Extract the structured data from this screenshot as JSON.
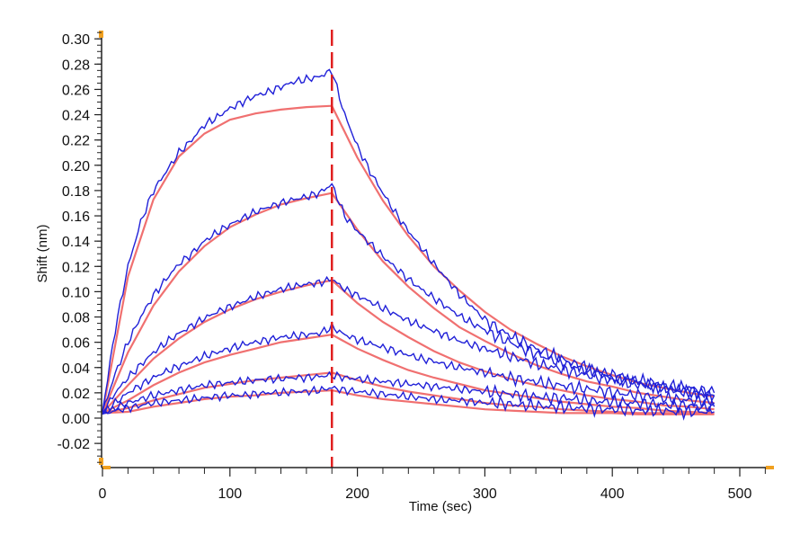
{
  "chart_data": {
    "type": "line",
    "title": "",
    "xlabel": "Time (sec)",
    "ylabel": "Shift (nm)",
    "xlim": [
      0,
      527
    ],
    "ylim": [
      -0.039,
      0.306
    ],
    "x_ticks": [
      0,
      100,
      200,
      300,
      400,
      500
    ],
    "x_tick_labels": [
      "0",
      "100",
      "200",
      "300",
      "400",
      "500"
    ],
    "y_ticks": [
      -0.02,
      0.0,
      0.02,
      0.04,
      0.06,
      0.08,
      0.1,
      0.12,
      0.14,
      0.16,
      0.18,
      0.2,
      0.22,
      0.24,
      0.26,
      0.28,
      0.3
    ],
    "y_tick_labels": [
      "-0.02",
      "0.00",
      "0.02",
      "0.04",
      "0.06",
      "0.08",
      "0.10",
      "0.12",
      "0.14",
      "0.16",
      "0.18",
      "0.20",
      "0.22",
      "0.24",
      "0.26",
      "0.28",
      "0.30"
    ],
    "grid": false,
    "vertical_marker": {
      "x": 180,
      "style": "dashed",
      "color": "#e02020"
    },
    "colors": {
      "measured": "#2020d8",
      "fit": "#f07070"
    },
    "measured_x": [
      0,
      10,
      20,
      30,
      40,
      50,
      60,
      70,
      80,
      90,
      100,
      110,
      120,
      130,
      140,
      150,
      160,
      170,
      180,
      190,
      200,
      210,
      220,
      230,
      240,
      250,
      260,
      270,
      280,
      290,
      300,
      310,
      320,
      330,
      340,
      350,
      360,
      370,
      380,
      390,
      400,
      410,
      420,
      430,
      440,
      450,
      460,
      470,
      480
    ],
    "fit_x": [
      0,
      20,
      40,
      60,
      80,
      100,
      120,
      140,
      160,
      180,
      200,
      220,
      240,
      260,
      280,
      300,
      320,
      340,
      360,
      380,
      400,
      420,
      440,
      460,
      480
    ],
    "series": [
      {
        "name": "measured-1",
        "kind": "measured",
        "values": [
          0.005,
          0.07,
          0.12,
          0.155,
          0.18,
          0.195,
          0.21,
          0.22,
          0.232,
          0.238,
          0.245,
          0.25,
          0.255,
          0.258,
          0.262,
          0.266,
          0.268,
          0.27,
          0.275,
          0.24,
          0.215,
          0.195,
          0.178,
          0.162,
          0.148,
          0.135,
          0.122,
          0.11,
          0.098,
          0.088,
          0.078,
          0.071,
          0.065,
          0.06,
          0.055,
          0.051,
          0.047,
          0.043,
          0.04,
          0.037,
          0.034,
          0.032,
          0.03,
          0.028,
          0.026,
          0.025,
          0.024,
          0.022,
          0.02
        ]
      },
      {
        "name": "measured-2",
        "kind": "measured",
        "values": [
          0.005,
          0.035,
          0.06,
          0.08,
          0.097,
          0.11,
          0.122,
          0.13,
          0.14,
          0.147,
          0.153,
          0.158,
          0.163,
          0.167,
          0.17,
          0.173,
          0.175,
          0.178,
          0.185,
          0.16,
          0.148,
          0.138,
          0.128,
          0.119,
          0.11,
          0.102,
          0.095,
          0.088,
          0.081,
          0.075,
          0.07,
          0.064,
          0.06,
          0.055,
          0.051,
          0.047,
          0.044,
          0.041,
          0.038,
          0.035,
          0.032,
          0.03,
          0.028,
          0.026,
          0.024,
          0.022,
          0.021,
          0.019,
          0.018
        ]
      },
      {
        "name": "measured-3",
        "kind": "measured",
        "values": [
          0.004,
          0.02,
          0.032,
          0.042,
          0.052,
          0.06,
          0.067,
          0.073,
          0.079,
          0.084,
          0.088,
          0.092,
          0.096,
          0.099,
          0.102,
          0.104,
          0.106,
          0.107,
          0.11,
          0.102,
          0.097,
          0.092,
          0.087,
          0.082,
          0.077,
          0.073,
          0.069,
          0.065,
          0.061,
          0.058,
          0.055,
          0.052,
          0.049,
          0.046,
          0.043,
          0.041,
          0.039,
          0.036,
          0.034,
          0.032,
          0.03,
          0.028,
          0.027,
          0.025,
          0.024,
          0.022,
          0.021,
          0.02,
          0.018
        ]
      },
      {
        "name": "measured-4",
        "kind": "measured",
        "values": [
          0.004,
          0.012,
          0.02,
          0.026,
          0.032,
          0.037,
          0.041,
          0.045,
          0.049,
          0.052,
          0.055,
          0.058,
          0.06,
          0.062,
          0.064,
          0.065,
          0.066,
          0.067,
          0.072,
          0.066,
          0.062,
          0.059,
          0.056,
          0.053,
          0.05,
          0.047,
          0.045,
          0.042,
          0.04,
          0.038,
          0.036,
          0.034,
          0.032,
          0.03,
          0.029,
          0.027,
          0.026,
          0.024,
          0.023,
          0.022,
          0.02,
          0.019,
          0.018,
          0.017,
          0.016,
          0.015,
          0.014,
          0.013,
          0.012
        ]
      },
      {
        "name": "measured-5",
        "kind": "measured",
        "values": [
          0.003,
          0.008,
          0.012,
          0.015,
          0.018,
          0.02,
          0.022,
          0.024,
          0.026,
          0.027,
          0.028,
          0.029,
          0.03,
          0.031,
          0.031,
          0.032,
          0.032,
          0.033,
          0.034,
          0.032,
          0.031,
          0.03,
          0.029,
          0.028,
          0.027,
          0.026,
          0.025,
          0.024,
          0.023,
          0.022,
          0.021,
          0.02,
          0.019,
          0.018,
          0.017,
          0.016,
          0.016,
          0.015,
          0.014,
          0.013,
          0.013,
          0.012,
          0.012,
          0.011,
          0.011,
          0.01,
          0.01,
          0.009,
          0.009
        ]
      },
      {
        "name": "measured-6",
        "kind": "measured",
        "values": [
          0.003,
          0.006,
          0.008,
          0.01,
          0.012,
          0.013,
          0.014,
          0.015,
          0.016,
          0.017,
          0.018,
          0.018,
          0.019,
          0.02,
          0.02,
          0.021,
          0.021,
          0.022,
          0.024,
          0.022,
          0.021,
          0.02,
          0.019,
          0.018,
          0.017,
          0.016,
          0.015,
          0.014,
          0.014,
          0.013,
          0.012,
          0.012,
          0.011,
          0.01,
          0.01,
          0.009,
          0.009,
          0.008,
          0.008,
          0.007,
          0.007,
          0.007,
          0.006,
          0.006,
          0.006,
          0.005,
          0.005,
          0.005,
          0.005
        ]
      },
      {
        "name": "fit-1",
        "kind": "fit",
        "values": [
          0.004,
          0.112,
          0.173,
          0.207,
          0.225,
          0.236,
          0.241,
          0.244,
          0.246,
          0.247,
          0.206,
          0.172,
          0.144,
          0.12,
          0.101,
          0.084,
          0.07,
          0.059,
          0.049,
          0.041,
          0.034,
          0.028,
          0.024,
          0.02,
          0.017
        ]
      },
      {
        "name": "fit-2",
        "kind": "fit",
        "values": [
          0.004,
          0.052,
          0.089,
          0.116,
          0.136,
          0.151,
          0.161,
          0.169,
          0.174,
          0.178,
          0.149,
          0.124,
          0.104,
          0.087,
          0.072,
          0.061,
          0.051,
          0.042,
          0.035,
          0.029,
          0.025,
          0.02,
          0.017,
          0.014,
          0.012
        ]
      },
      {
        "name": "fit-3",
        "kind": "fit",
        "values": [
          0.004,
          0.026,
          0.047,
          0.063,
          0.076,
          0.086,
          0.094,
          0.1,
          0.105,
          0.109,
          0.091,
          0.076,
          0.064,
          0.053,
          0.044,
          0.037,
          0.031,
          0.026,
          0.022,
          0.018,
          0.015,
          0.013,
          0.01,
          0.009,
          0.007
        ]
      },
      {
        "name": "fit-4",
        "kind": "fit",
        "values": [
          0.004,
          0.014,
          0.026,
          0.036,
          0.044,
          0.05,
          0.055,
          0.06,
          0.063,
          0.066,
          0.055,
          0.046,
          0.038,
          0.032,
          0.027,
          0.022,
          0.019,
          0.016,
          0.013,
          0.011,
          0.009,
          0.008,
          0.006,
          0.005,
          0.004
        ]
      },
      {
        "name": "fit-5",
        "kind": "fit",
        "values": [
          0.004,
          0.008,
          0.014,
          0.019,
          0.024,
          0.027,
          0.03,
          0.032,
          0.034,
          0.036,
          0.03,
          0.025,
          0.021,
          0.018,
          0.015,
          0.012,
          0.01,
          0.009,
          0.007,
          0.006,
          0.005,
          0.004,
          0.004,
          0.004,
          0.004
        ]
      },
      {
        "name": "fit-6",
        "kind": "fit",
        "values": [
          0.004,
          0.005,
          0.009,
          0.012,
          0.015,
          0.017,
          0.018,
          0.02,
          0.021,
          0.022,
          0.018,
          0.015,
          0.013,
          0.011,
          0.009,
          0.007,
          0.006,
          0.005,
          0.004,
          0.004,
          0.004,
          0.003,
          0.003,
          0.003,
          0.003
        ]
      }
    ]
  }
}
